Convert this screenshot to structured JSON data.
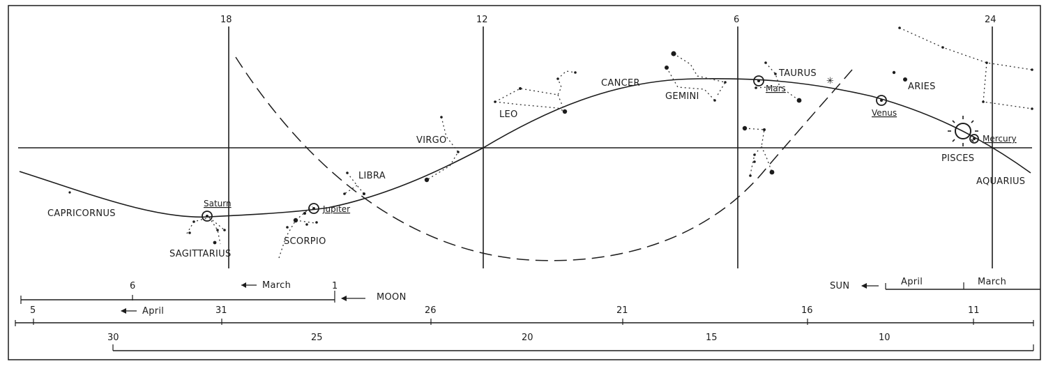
{
  "hour_labels": [
    "18",
    "12",
    "6",
    "24"
  ],
  "constellations": {
    "capricornus": "CAPRICORNUS",
    "sagittarius": "SAGITTARIUS",
    "scorpio": "SCORPIO",
    "libra": "LIBRA",
    "virgo": "VIRGO",
    "leo": "LEO",
    "cancer": "CANCER",
    "gemini": "GEMINI",
    "taurus": "TAURUS",
    "aries": "ARIES",
    "pisces": "PISCES",
    "aquarius": "AQUARIUS"
  },
  "planets": {
    "saturn": "Saturn",
    "jupiter": "Jupiter",
    "mars": "Mars",
    "venus": "Venus",
    "mercury": "Mercury"
  },
  "scales": {
    "moon_label": "MOON",
    "moon_month_march": "March",
    "moon_day_6": "6",
    "moon_day_1": "1",
    "sun_label": "SUN",
    "sun_month_april": "April",
    "sun_month_march": "March",
    "moon2_month_april": "April",
    "moon2_days": [
      "5",
      "31",
      "26",
      "21",
      "16",
      "11"
    ],
    "sun2_days": [
      "30",
      "25",
      "20",
      "15",
      "10"
    ]
  },
  "colors": {
    "ink": "#1c1c1c",
    "background": "#ffffff"
  }
}
